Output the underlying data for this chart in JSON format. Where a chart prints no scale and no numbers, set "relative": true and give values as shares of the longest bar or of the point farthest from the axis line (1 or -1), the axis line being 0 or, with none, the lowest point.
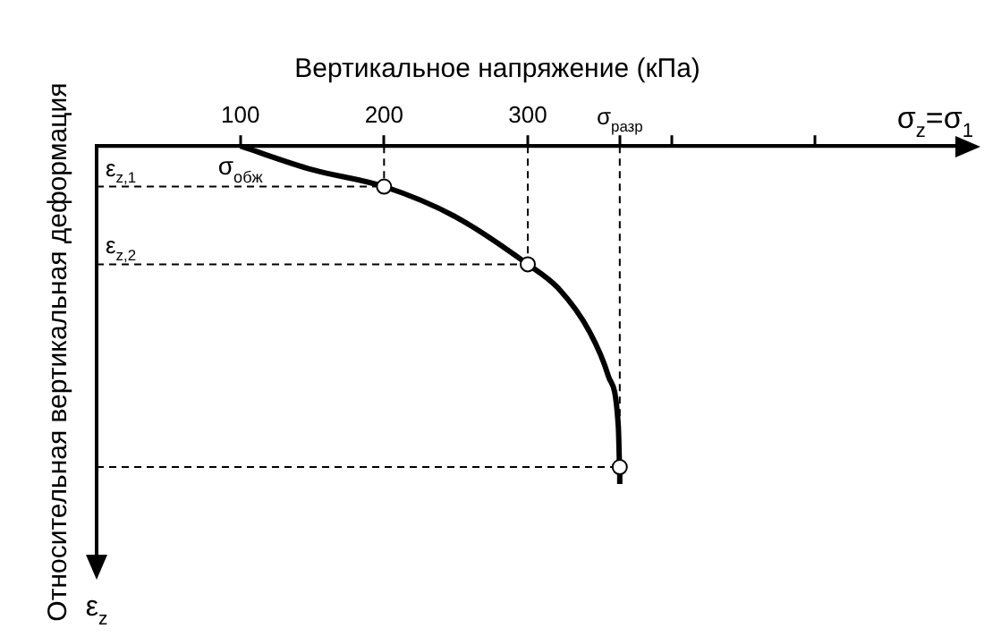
{
  "chart_data": {
    "type": "line",
    "relative": true,
    "title": "Вертикальное напряжение (кПа)",
    "xlabel": "σ$_{z}$=σ$_{1}$",
    "ylabel": "Относительная вертикальная деформация",
    "xlim": [
      0,
      600
    ],
    "xticks": [
      100,
      200,
      300,
      {
        "value": 364,
        "label": "σ$_{разр}$"
      },
      {
        "value": 400,
        "label": null
      },
      {
        "value": 500,
        "label": null
      }
    ],
    "series": [
      {
        "color": "#000000",
        "marker": "none",
        "x": [
          100,
          150,
          200,
          250,
          300,
          321,
          343,
          356,
          363,
          364,
          364
        ],
        "values": [
          0,
          -0.07,
          -0.12,
          -0.21,
          -0.35,
          -0.42,
          -0.55,
          -0.68,
          -0.83,
          -0.95,
          -1
        ]
      },
      {
        "type": "scatter",
        "color": "#000000",
        "marker": "circle",
        "x": [
          200,
          300,
          364
        ],
        "values": [
          -0.12,
          -0.35,
          -0.95
        ]
      }
    ],
    "ref_lines": [
      {
        "axis": "x",
        "value": 200,
        "line_style": "dashed",
        "color": "#000000"
      },
      {
        "axis": "x",
        "value": 300,
        "line_style": "dashed",
        "color": "#000000"
      },
      {
        "axis": "x",
        "value": 364,
        "line_style": "dashed",
        "color": "#000000"
      },
      {
        "axis": "y",
        "value": -0.12,
        "label": "ε$_{z,1}$",
        "line_style": "dashed",
        "color": "#000000"
      },
      {
        "axis": "y",
        "value": -0.35,
        "label": "ε$_{z,2}$",
        "line_style": "dashed",
        "color": "#000000"
      },
      {
        "axis": "y",
        "value": -0.95,
        "line_style": "dashed",
        "color": "#000000"
      }
    ],
    "annotations": [
      {
        "text": "σ$_{обж}$",
        "x": 100,
        "y": 0
      },
      "ε$_{z}$"
    ],
    "grid": false,
    "legend": false
  }
}
